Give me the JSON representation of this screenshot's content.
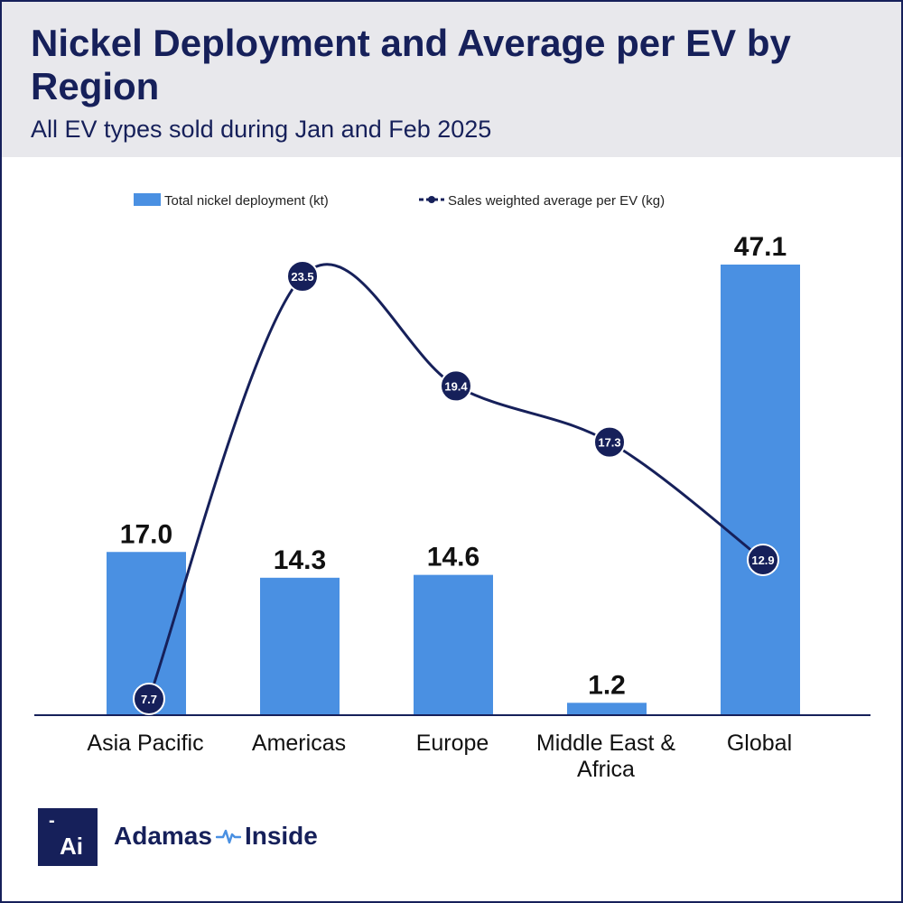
{
  "header": {
    "title": "Nickel Deployment and Average per EV by Region",
    "subtitle": "All EV types sold during Jan and Feb 2025"
  },
  "brand": {
    "logo_mark": "-",
    "logo_text": "Ai",
    "name_left": "Adamas",
    "name_right": "Inside",
    "icon": "pulse-icon"
  },
  "colors": {
    "bar": "#4a90e2",
    "line": "#16205a",
    "title": "#16205a",
    "header_bg": "#e8e8ec"
  },
  "chart_data": {
    "type": "bar",
    "categories": [
      [
        "Asia Pacific"
      ],
      [
        "Americas"
      ],
      [
        "Europe"
      ],
      [
        "Middle East &",
        "Africa"
      ],
      [
        "Global"
      ]
    ],
    "series": [
      {
        "name": "Total nickel deployment (kt)",
        "type": "bar",
        "values": [
          17.0,
          14.3,
          14.6,
          1.2,
          47.1
        ],
        "labels": [
          "17.0",
          "14.3",
          "14.6",
          "1.2",
          "47.1"
        ]
      },
      {
        "name": "Sales weighted average per EV (kg)",
        "type": "line",
        "values": [
          7.7,
          23.5,
          19.4,
          17.3,
          12.9
        ],
        "labels": [
          "7.7",
          "23.5",
          "19.4",
          "17.3",
          "12.9"
        ]
      }
    ],
    "bar_ylim": [
      0,
      50
    ],
    "line_ylim": [
      0,
      28
    ],
    "legend": "top-center",
    "grid": false,
    "xlabel": "",
    "ylabel": ""
  }
}
